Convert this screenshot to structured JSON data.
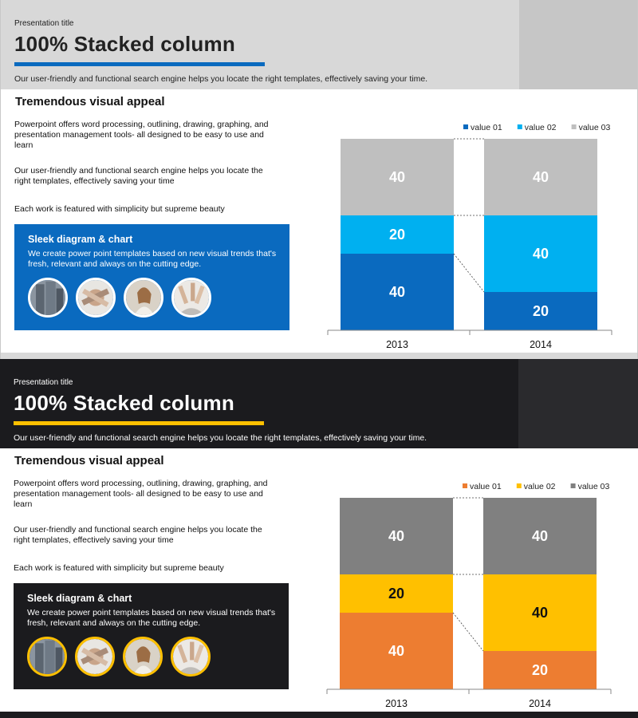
{
  "slides": [
    {
      "theme": {
        "header_bg": "#d8d8d8",
        "side_block": "#c6c6c6",
        "header_text": "#222222",
        "rule": "#0a6abf",
        "box_bg": "#0a6abf",
        "photo_ring": "#ffffff",
        "footer": "#d9d9d9",
        "label_dark_on": []
      },
      "presentation_title": "Presentation title",
      "title": "100% Stacked column",
      "subtitle": "Our user-friendly  and functional  search engine helps  you locate the right templates, effectively  saving  your time.",
      "heading": "Tremendous visual appeal",
      "paragraphs": [
        "Powerpoint offers word processing, outlining, drawing, graphing, and presentation management tools- all designed to be easy to use and learn",
        "Our user-friendly  and functional  search engine helps  you locate the right templates, effectively  saving  your time",
        "Each work is featured  with simplicity but supreme  beauty"
      ],
      "box": {
        "title": "Sleek diagram & chart",
        "text": "We create power point templates based on new visual trends that's fresh, relevant  and always on the cutting edge.",
        "photos": [
          "building-photo",
          "team-hands-photo",
          "woman-phone-photo",
          "team-cheer-photo"
        ]
      },
      "chart_data": {
        "type": "bar",
        "stacked": "100%",
        "categories": [
          "2013",
          "2014"
        ],
        "series": [
          {
            "name": "value 01",
            "values": [
              40,
              20
            ],
            "color": "#0a6abf"
          },
          {
            "name": "value 02",
            "values": [
              20,
              40
            ],
            "color": "#00b0f0"
          },
          {
            "name": "value 03",
            "values": [
              40,
              40
            ],
            "color": "#bfbfbf"
          }
        ],
        "ylim": [
          0,
          100
        ],
        "legend": "top-right",
        "grid": false
      }
    },
    {
      "theme": {
        "header_bg": "#1b1b1e",
        "side_block": "#2a2a2d",
        "header_text": "#ffffff",
        "rule": "#ffc000",
        "box_bg": "#1b1b1e",
        "photo_ring": "#ffc000",
        "footer": "#1b1b1e",
        "label_dark_on": [
          "value 02"
        ]
      },
      "presentation_title": "Presentation title",
      "title": "100% Stacked column",
      "subtitle": "Our user-friendly  and functional  search engine helps  you locate the right templates, effectively  saving  your time.",
      "heading": "Tremendous visual appeal",
      "paragraphs": [
        "Powerpoint offers word processing, outlining, drawing, graphing, and presentation management tools- all designed to be easy to use and learn",
        "Our user-friendly  and functional  search engine helps  you locate the right templates, effectively  saving  your time",
        "Each work is featured  with simplicity but supreme  beauty"
      ],
      "box": {
        "title": "Sleek diagram & chart",
        "text": "We create power point templates based on new visual trends that's fresh, relevant  and always on the cutting edge.",
        "photos": [
          "building-photo",
          "team-hands-photo",
          "woman-phone-photo",
          "team-cheer-photo"
        ]
      },
      "chart_data": {
        "type": "bar",
        "stacked": "100%",
        "categories": [
          "2013",
          "2014"
        ],
        "series": [
          {
            "name": "value 01",
            "values": [
              40,
              20
            ],
            "color": "#ed7d31"
          },
          {
            "name": "value 02",
            "values": [
              20,
              40
            ],
            "color": "#ffc000"
          },
          {
            "name": "value 03",
            "values": [
              40,
              40
            ],
            "color": "#808080"
          }
        ],
        "ylim": [
          0,
          100
        ],
        "legend": "top-right",
        "grid": false
      }
    }
  ]
}
